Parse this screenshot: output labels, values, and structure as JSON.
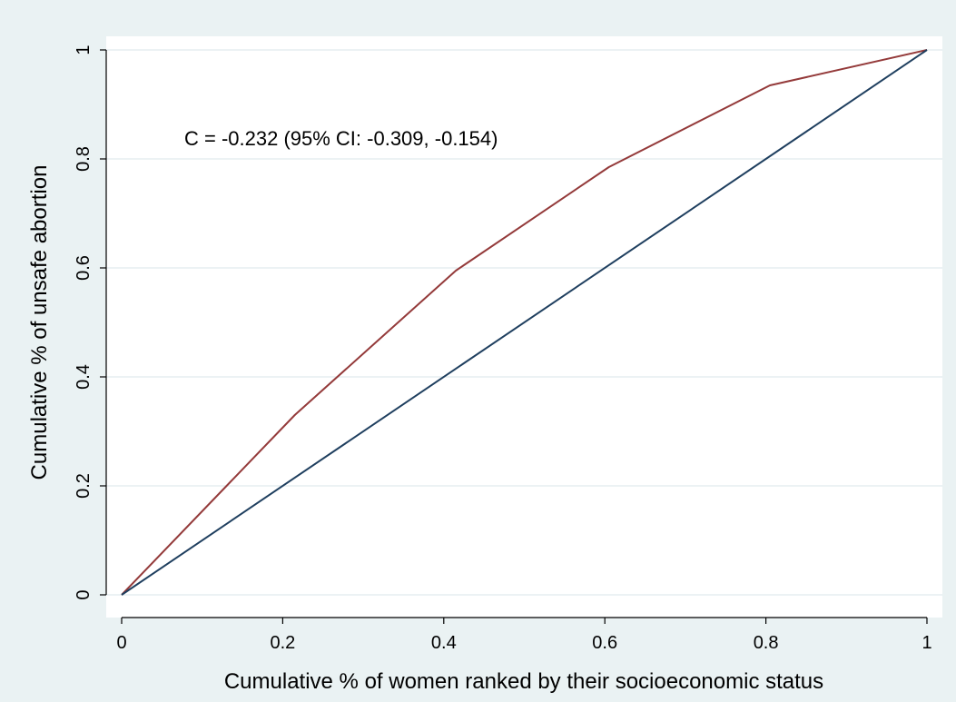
{
  "chart_data": {
    "type": "line",
    "xlabel": "Cumulative % of women ranked by their socioeconomic status",
    "ylabel": "Cumulative % of unsafe abortion",
    "xlim": [
      0,
      1
    ],
    "ylim": [
      0,
      1
    ],
    "xticks": [
      "0",
      "0.2",
      "0.4",
      "0.6",
      "0.8",
      "1"
    ],
    "yticks": [
      "0",
      "0.2",
      "0.4",
      "0.6",
      "0.8",
      "1"
    ],
    "grid": true,
    "annotation": "C = -0.232 (95% CI: -0.309, -0.154)",
    "series": [
      {
        "color": "#943a3a",
        "points": [
          [
            0,
            0
          ],
          [
            0.215,
            0.33
          ],
          [
            0.415,
            0.595
          ],
          [
            0.605,
            0.785
          ],
          [
            0.805,
            0.935
          ],
          [
            1,
            1
          ]
        ]
      },
      {
        "color": "#1f3f5f",
        "points": [
          [
            0,
            0
          ],
          [
            1,
            1
          ]
        ]
      }
    ]
  }
}
